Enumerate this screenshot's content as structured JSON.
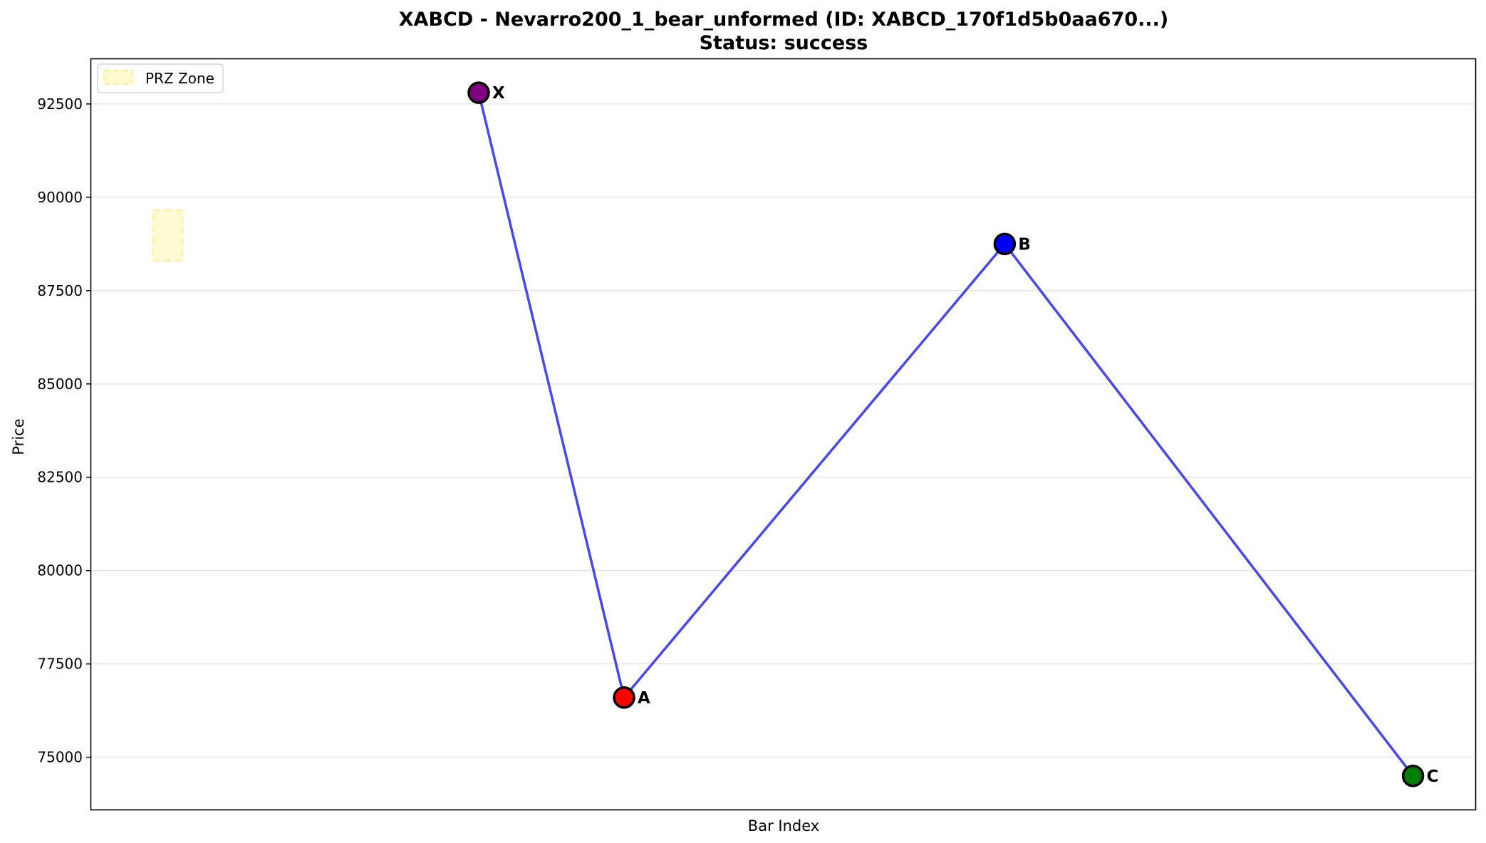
{
  "chart_data": {
    "type": "line",
    "title": "XABCD - Nevarro200_1_bear_unformed (ID: XABCD_170f1d5b0aa670...)",
    "subtitle": "Status: success",
    "xlabel": "Bar Index",
    "ylabel": "Price",
    "ylim": [
      73600,
      93700
    ],
    "yticks": [
      75000,
      77500,
      80000,
      82500,
      85000,
      87500,
      90000,
      92500
    ],
    "grid": "horizontal",
    "legend": {
      "placement": "top-left",
      "entries": [
        {
          "label": "PRZ Zone"
        }
      ]
    },
    "points": [
      {
        "label": "X",
        "x": 0.28,
        "y": 92800,
        "color": "#800080"
      },
      {
        "label": "A",
        "x": 0.385,
        "y": 76600,
        "color": "#ff0000"
      },
      {
        "label": "B",
        "x": 0.66,
        "y": 88750,
        "color": "#0000ff"
      },
      {
        "label": "C",
        "x": 0.955,
        "y": 74500,
        "color": "#008000"
      }
    ],
    "line_color": "#3333ee",
    "prz_zone": {
      "x_start": 0.045,
      "x_end": 0.066,
      "y_low": 88300,
      "y_high": 89650,
      "color": "#fffacd"
    }
  }
}
